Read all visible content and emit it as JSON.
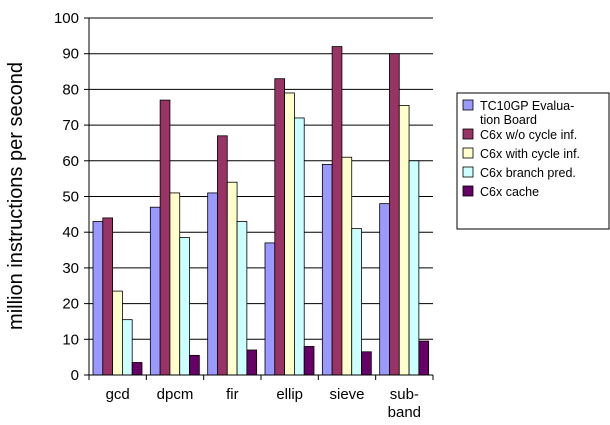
{
  "chart_data": {
    "type": "bar",
    "ylabel": "million instructions per second",
    "xlabel": "",
    "ylim": [
      0,
      100
    ],
    "yticks": [
      0,
      10,
      20,
      30,
      40,
      50,
      60,
      70,
      80,
      90,
      100
    ],
    "grid": true,
    "legend_position": "right",
    "categories": [
      [
        "gcd"
      ],
      [
        "dpcm"
      ],
      [
        "fir"
      ],
      [
        "ellip"
      ],
      [
        "sieve"
      ],
      [
        "sub-",
        "band"
      ]
    ],
    "series": [
      {
        "name": [
          "TC10GP Evalua-",
          "tion Board"
        ],
        "color": "#9999ff",
        "values": [
          43,
          47,
          51,
          37,
          59,
          48
        ]
      },
      {
        "name": [
          "C6x w/o cycle inf."
        ],
        "color": "#993366",
        "values": [
          44,
          77,
          67,
          83,
          92,
          90
        ]
      },
      {
        "name": [
          "C6x with cycle inf."
        ],
        "color": "#ffffcc",
        "values": [
          23.5,
          51,
          54,
          79,
          61,
          75.5
        ]
      },
      {
        "name": [
          "C6x branch pred."
        ],
        "color": "#ccffff",
        "values": [
          15.5,
          38.5,
          43,
          72,
          41,
          60
        ]
      },
      {
        "name": [
          "C6x cache"
        ],
        "color": "#660066",
        "values": [
          3.5,
          5.5,
          7,
          8,
          6.5,
          9.5
        ]
      }
    ]
  }
}
